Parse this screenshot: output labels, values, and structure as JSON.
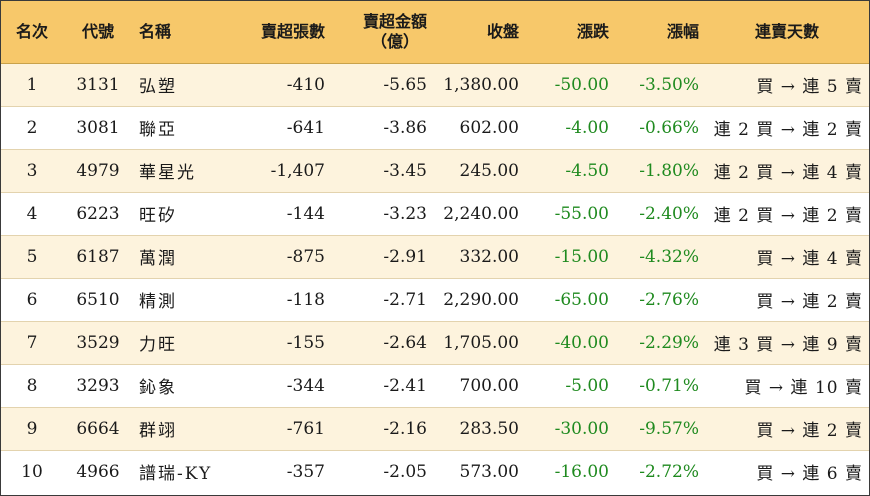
{
  "headers": {
    "rank": "名次",
    "code": "代號",
    "name": "名稱",
    "sell_lots": "賣超張數",
    "sell_amount_line1": "賣超金額",
    "sell_amount_line2": "（億）",
    "close": "收盤",
    "change": "漲跌",
    "change_pct": "漲幅",
    "streak": "連賣天數"
  },
  "rows": [
    {
      "rank": "1",
      "code": "3131",
      "name": "弘塑",
      "sell_lots": "-410",
      "sell_amount": "-5.65",
      "close": "1,380.00",
      "change": "-50.00",
      "change_pct": "-3.50%",
      "streak": "買 → 連 5 賣"
    },
    {
      "rank": "2",
      "code": "3081",
      "name": "聯亞",
      "sell_lots": "-641",
      "sell_amount": "-3.86",
      "close": "602.00",
      "change": "-4.00",
      "change_pct": "-0.66%",
      "streak": "連 2 買 → 連 2 賣"
    },
    {
      "rank": "3",
      "code": "4979",
      "name": "華星光",
      "sell_lots": "-1,407",
      "sell_amount": "-3.45",
      "close": "245.00",
      "change": "-4.50",
      "change_pct": "-1.80%",
      "streak": "連 2 買 → 連 4 賣"
    },
    {
      "rank": "4",
      "code": "6223",
      "name": "旺矽",
      "sell_lots": "-144",
      "sell_amount": "-3.23",
      "close": "2,240.00",
      "change": "-55.00",
      "change_pct": "-2.40%",
      "streak": "連 2 買 → 連 2 賣"
    },
    {
      "rank": "5",
      "code": "6187",
      "name": "萬潤",
      "sell_lots": "-875",
      "sell_amount": "-2.91",
      "close": "332.00",
      "change": "-15.00",
      "change_pct": "-4.32%",
      "streak": "買 → 連 4 賣"
    },
    {
      "rank": "6",
      "code": "6510",
      "name": "精測",
      "sell_lots": "-118",
      "sell_amount": "-2.71",
      "close": "2,290.00",
      "change": "-65.00",
      "change_pct": "-2.76%",
      "streak": "買 → 連 2 賣"
    },
    {
      "rank": "7",
      "code": "3529",
      "name": "力旺",
      "sell_lots": "-155",
      "sell_amount": "-2.64",
      "close": "1,705.00",
      "change": "-40.00",
      "change_pct": "-2.29%",
      "streak": "連 3 買 → 連 9 賣"
    },
    {
      "rank": "8",
      "code": "3293",
      "name": "鈊象",
      "sell_lots": "-344",
      "sell_amount": "-2.41",
      "close": "700.00",
      "change": "-5.00",
      "change_pct": "-0.71%",
      "streak": "買 → 連 10 賣"
    },
    {
      "rank": "9",
      "code": "6664",
      "name": "群翊",
      "sell_lots": "-761",
      "sell_amount": "-2.16",
      "close": "283.50",
      "change": "-30.00",
      "change_pct": "-9.57%",
      "streak": "買 → 連 2 賣"
    },
    {
      "rank": "10",
      "code": "4966",
      "name": "譜瑞-KY",
      "sell_lots": "-357",
      "sell_amount": "-2.05",
      "close": "573.00",
      "change": "-16.00",
      "change_pct": "-2.72%",
      "streak": "買 → 連 6 賣"
    }
  ],
  "colors": {
    "header_bg": "#f7c86a",
    "odd_row_bg": "#fdf3dd",
    "negative_change": "#1f8a1f"
  }
}
